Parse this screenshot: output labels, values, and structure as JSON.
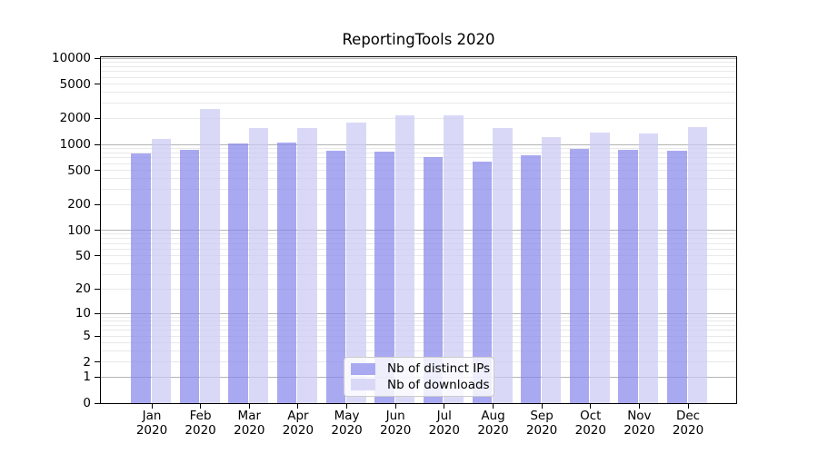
{
  "title": "ReportingTools 2020",
  "chart_data": {
    "type": "bar",
    "title": "ReportingTools 2020",
    "categories": [
      "Jan",
      "Feb",
      "Mar",
      "Apr",
      "May",
      "Jun",
      "Jul",
      "Aug",
      "Sep",
      "Oct",
      "Nov",
      "Dec"
    ],
    "x_year": "2020",
    "series": [
      {
        "name": "Nb of distinct IPs",
        "color": "#a9a9f1",
        "values": [
          780,
          870,
          1030,
          1040,
          850,
          820,
          720,
          630,
          740,
          890,
          870,
          840
        ]
      },
      {
        "name": "Nb of downloads",
        "color": "#d9d9f7",
        "values": [
          1160,
          2580,
          1530,
          1530,
          1770,
          2150,
          2190,
          1560,
          1200,
          1360,
          1350,
          1570
        ]
      }
    ],
    "yscale": "log1p",
    "y_ticks": [
      0,
      1,
      2,
      5,
      10,
      20,
      50,
      100,
      200,
      500,
      1000,
      2000,
      5000,
      10000
    ],
    "ylim": [
      0,
      10300
    ],
    "grid": true,
    "legend_position": "lower center"
  },
  "colors": {
    "grid_major": "#b4b4b4",
    "grid_minor": "#e9e9e9",
    "axis": "#000000",
    "legend_border": "#cccccc",
    "legend_background": "rgba(255,255,255,0.8)"
  }
}
